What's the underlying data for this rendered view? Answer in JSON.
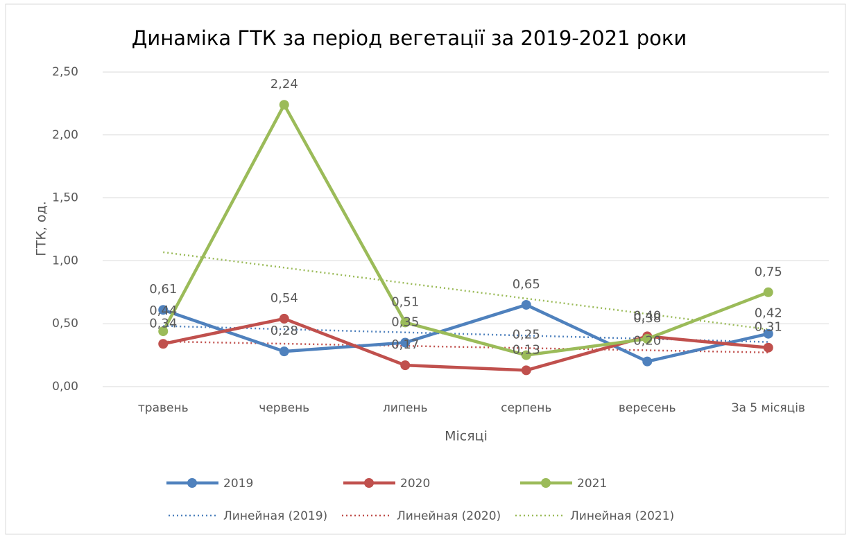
{
  "chart_data": {
    "type": "line",
    "title": "Динаміка ГТК за період вегетації за 2019-2021 роки",
    "x_label": "Місяці",
    "y_label": "ГТК, од.",
    "categories": [
      "травень",
      "червень",
      "липень",
      "серпень",
      "вересень",
      "За 5 місяців"
    ],
    "series": [
      {
        "name": "2019",
        "color": "#4f81bd",
        "values": [
          0.61,
          0.28,
          0.35,
          0.65,
          0.2,
          0.42
        ],
        "value_labels": [
          "0,61",
          "0,28",
          "0,35",
          "0,65",
          "0,20",
          "0,42"
        ],
        "trendline": {
          "name": "Линейная (2019)",
          "type": "linear"
        }
      },
      {
        "name": "2020",
        "color": "#c0504d",
        "values": [
          0.34,
          0.54,
          0.17,
          0.13,
          0.4,
          0.31
        ],
        "value_labels": [
          "0,34",
          "0,54",
          "0,17",
          "0,13",
          "0,40",
          "0,31"
        ],
        "trendline": {
          "name": "Линейная (2020)",
          "type": "linear"
        }
      },
      {
        "name": "2021",
        "color": "#9bbb59",
        "values": [
          0.44,
          2.24,
          0.51,
          0.25,
          0.38,
          0.75
        ],
        "value_labels": [
          "0,44",
          "2,24",
          "0,51",
          "0,25",
          "0,38",
          "0,75"
        ],
        "trendline": {
          "name": "Линейная (2021)",
          "type": "linear"
        }
      }
    ],
    "ylim": [
      0,
      2.5
    ],
    "yticks": [
      {
        "value": 0,
        "label": "0,00"
      },
      {
        "value": 0.5,
        "label": "0,50"
      },
      {
        "value": 1,
        "label": "1,00"
      },
      {
        "value": 1.5,
        "label": "1,50"
      },
      {
        "value": 2,
        "label": "2,00"
      },
      {
        "value": 2.5,
        "label": "2,50"
      }
    ],
    "grid": true,
    "legend": "bottom"
  }
}
